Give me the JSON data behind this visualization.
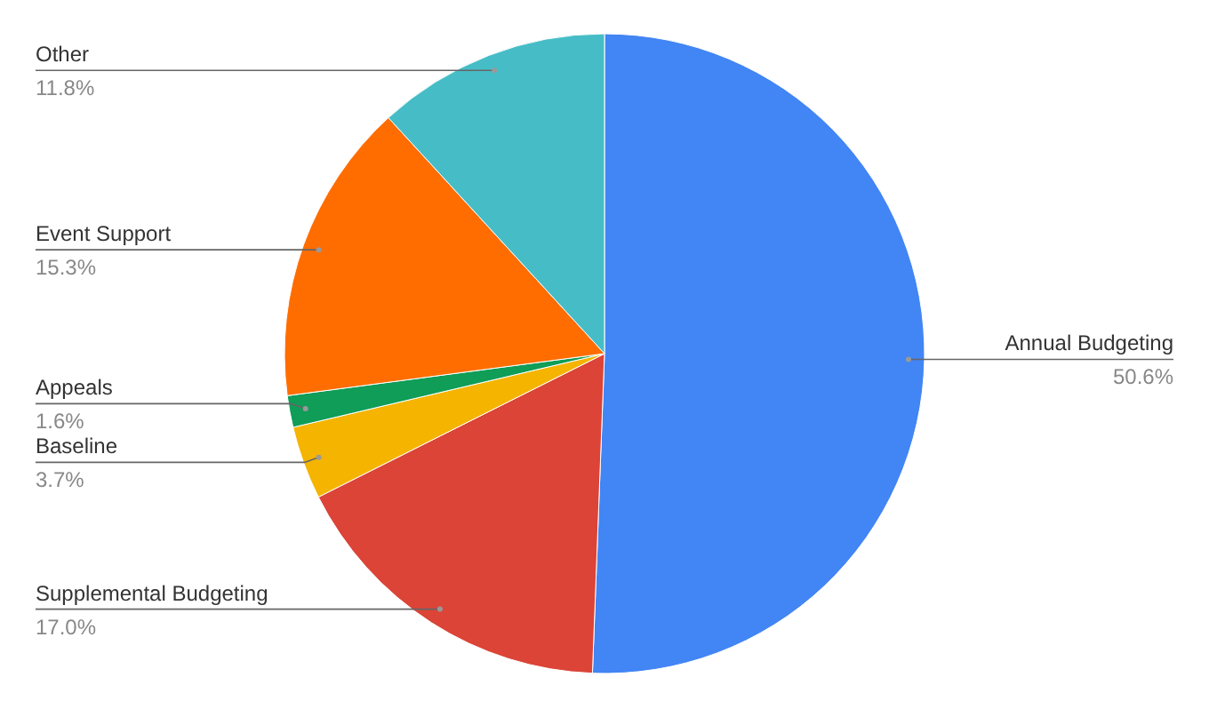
{
  "chart_data": {
    "type": "pie",
    "categories": [
      "Annual Budgeting",
      "Supplemental Budgeting",
      "Baseline",
      "Appeals",
      "Event Support",
      "Other"
    ],
    "values": [
      50.6,
      17.0,
      3.7,
      1.6,
      15.3,
      11.8
    ],
    "colors": [
      "#4285f4",
      "#db4437",
      "#f4b400",
      "#0f9d58",
      "#ff6d01",
      "#46bdc6"
    ],
    "value_labels": [
      "50.6%",
      "17.0%",
      "3.7%",
      "1.6%",
      "15.3%",
      "11.8%"
    ]
  }
}
